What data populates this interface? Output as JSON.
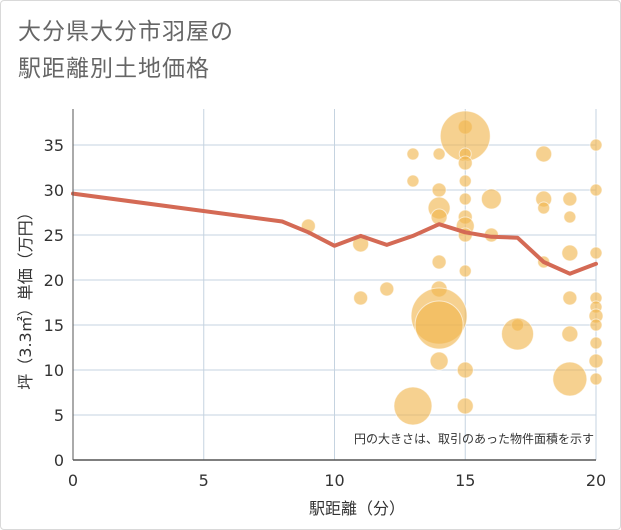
{
  "chart_data": {
    "type": "scatter",
    "title": [
      "大分県大分市羽屋の",
      "駅距離別土地価格"
    ],
    "xlabel": "駅距離（分）",
    "ylabel": "坪（3.3㎡）単価（万円）",
    "xlim": [
      0,
      20
    ],
    "ylim": [
      0,
      39
    ],
    "xticks": [
      "0",
      "5",
      "10",
      "15",
      "20"
    ],
    "yticks": [
      "0",
      "5",
      "10",
      "15",
      "20",
      "25",
      "30",
      "35"
    ],
    "grid": true,
    "annotation": "円の大きさは、取引のあった物件面積を示す",
    "colors": {
      "bubble": "#f0b44c",
      "line": "#d46a55",
      "grid": "#c5d3e0",
      "axis": "#555555",
      "text": "#333333"
    },
    "series": [
      {
        "name": "average",
        "type": "line",
        "points": [
          [
            0,
            29.6
          ],
          [
            8,
            26.5
          ],
          [
            9,
            25.3
          ],
          [
            10,
            23.8
          ],
          [
            11,
            24.9
          ],
          [
            12,
            23.9
          ],
          [
            13,
            24.9
          ],
          [
            14,
            26.2
          ],
          [
            15,
            25.3
          ],
          [
            16,
            24.8
          ],
          [
            17,
            24.7
          ],
          [
            18,
            22.0
          ],
          [
            19,
            20.7
          ],
          [
            20,
            21.8
          ]
        ]
      },
      {
        "name": "transactions",
        "type": "bubble",
        "points": [
          [
            9,
            26,
            7
          ],
          [
            11,
            24,
            8
          ],
          [
            11,
            18,
            7
          ],
          [
            12,
            19,
            7
          ],
          [
            13,
            34,
            6
          ],
          [
            13,
            31,
            6
          ],
          [
            13,
            6,
            19
          ],
          [
            14,
            34,
            6
          ],
          [
            14,
            30,
            7
          ],
          [
            14,
            28,
            11
          ],
          [
            14,
            27,
            8
          ],
          [
            14,
            22,
            7
          ],
          [
            14,
            19,
            8
          ],
          [
            14,
            16,
            28
          ],
          [
            14,
            15,
            24
          ],
          [
            14,
            11,
            9
          ],
          [
            15,
            37,
            7
          ],
          [
            15,
            36,
            25
          ],
          [
            15,
            34,
            6
          ],
          [
            15,
            33,
            7
          ],
          [
            15,
            31,
            6
          ],
          [
            15,
            29,
            6
          ],
          [
            15,
            27,
            7
          ],
          [
            15,
            26,
            9
          ],
          [
            15,
            25,
            7
          ],
          [
            15,
            21,
            6
          ],
          [
            15,
            10,
            8
          ],
          [
            15,
            6,
            8
          ],
          [
            16,
            29,
            10
          ],
          [
            16,
            25,
            7
          ],
          [
            17,
            15,
            6
          ],
          [
            17,
            14,
            16
          ],
          [
            18,
            34,
            8
          ],
          [
            18,
            29,
            8
          ],
          [
            18,
            28,
            6
          ],
          [
            18,
            22,
            6
          ],
          [
            19,
            29,
            7
          ],
          [
            19,
            27,
            6
          ],
          [
            19,
            23,
            8
          ],
          [
            19,
            18,
            7
          ],
          [
            19,
            14,
            8
          ],
          [
            19,
            9,
            17
          ],
          [
            20,
            35,
            6
          ],
          [
            20,
            30,
            6
          ],
          [
            20,
            23,
            6
          ],
          [
            20,
            18,
            6
          ],
          [
            20,
            17,
            6
          ],
          [
            20,
            16,
            7
          ],
          [
            20,
            15,
            6
          ],
          [
            20,
            13,
            6
          ],
          [
            20,
            11,
            7
          ],
          [
            20,
            9,
            6
          ]
        ]
      }
    ]
  }
}
